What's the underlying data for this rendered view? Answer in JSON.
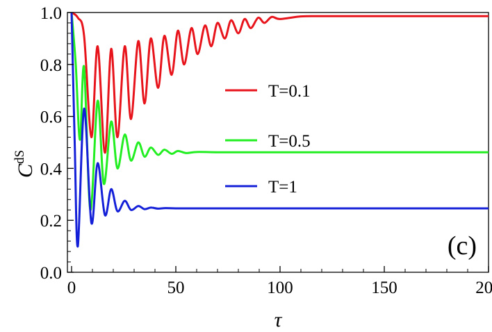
{
  "chart_data": {
    "type": "line",
    "xlabel": "τ",
    "ylabel_main": "C",
    "ylabel_sup": "dS",
    "xlim": [
      -2,
      200
    ],
    "ylim": [
      0,
      1
    ],
    "xticks": [
      0,
      50,
      100,
      150,
      200
    ],
    "yticks": [
      0.0,
      0.2,
      0.4,
      0.6,
      0.8,
      1.0
    ],
    "xtick_labels": [
      "0",
      "50",
      "100",
      "150",
      "200"
    ],
    "ytick_labels": [
      "0.0",
      "0.2",
      "0.4",
      "0.6",
      "0.8",
      "1.0"
    ],
    "grid": false,
    "legend_position": "center",
    "annotation": "(c)",
    "series": [
      {
        "name": "T=0.1",
        "color": "#e8141c",
        "x": [
          0,
          3,
          6,
          9.5,
          12.5,
          16,
          19,
          22,
          25.5,
          28.5,
          32,
          35,
          38,
          41.5,
          44.5,
          48,
          51,
          54,
          57.5,
          60.5,
          64,
          67,
          70,
          73.5,
          76.5,
          80,
          83,
          86,
          89.5,
          92.5,
          96,
          100,
          110,
          120,
          140,
          160,
          200
        ],
        "y": [
          1.0,
          0.98,
          0.91,
          0.52,
          0.87,
          0.46,
          0.86,
          0.52,
          0.87,
          0.59,
          0.89,
          0.65,
          0.9,
          0.71,
          0.91,
          0.76,
          0.93,
          0.8,
          0.94,
          0.84,
          0.95,
          0.87,
          0.96,
          0.9,
          0.97,
          0.92,
          0.975,
          0.94,
          0.98,
          0.96,
          0.983,
          0.975,
          0.985,
          0.986,
          0.986,
          0.986,
          0.986
        ]
      },
      {
        "name": "T=0.5",
        "color": "#22ee22",
        "x": [
          0,
          2,
          4,
          6,
          9,
          12.5,
          15.5,
          19,
          22,
          25.5,
          28.5,
          32,
          35,
          38,
          41.5,
          44.5,
          48,
          51,
          55,
          60,
          70,
          80,
          100,
          200
        ],
        "y": [
          1.0,
          0.8,
          0.51,
          0.79,
          0.24,
          0.66,
          0.34,
          0.58,
          0.4,
          0.53,
          0.43,
          0.5,
          0.445,
          0.48,
          0.452,
          0.472,
          0.456,
          0.467,
          0.459,
          0.463,
          0.462,
          0.462,
          0.462,
          0.462
        ]
      },
      {
        "name": "T=1",
        "color": "#1420d8",
        "x": [
          0,
          1.5,
          3,
          6,
          9.5,
          12.5,
          16,
          19,
          22,
          25.5,
          28.5,
          32,
          35,
          38,
          41.5,
          45,
          50,
          60,
          80,
          200
        ],
        "y": [
          1.0,
          0.5,
          0.1,
          0.63,
          0.19,
          0.42,
          0.22,
          0.32,
          0.235,
          0.275,
          0.24,
          0.255,
          0.243,
          0.249,
          0.245,
          0.247,
          0.246,
          0.246,
          0.246,
          0.246
        ]
      }
    ]
  }
}
